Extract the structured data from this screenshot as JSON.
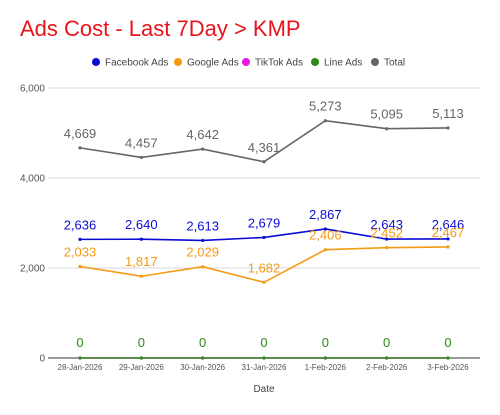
{
  "chart_data": {
    "type": "line",
    "title": "Ads Cost - Last 7Day > KMP",
    "xlabel": "Date",
    "ylabel": "",
    "categories": [
      "28-Jan-2026",
      "29-Jan-2026",
      "30-Jan-2026",
      "31-Jan-2026",
      "1-Feb-2026",
      "2-Feb-2026",
      "3-Feb-2026"
    ],
    "ylim": [
      0,
      6000
    ],
    "yticks": [
      0,
      2000,
      4000,
      6000
    ],
    "ytick_labels": [
      "0",
      "2,000",
      "4,000",
      "6,000"
    ],
    "grid": "horizontal",
    "legend_position": "top",
    "series": [
      {
        "name": "Facebook Ads",
        "color": "#0b0bd6",
        "values": [
          2636,
          2640,
          2613,
          2679,
          2867,
          2643,
          2646
        ],
        "labels": [
          "2,636",
          "2,640",
          "2,613",
          "2,679",
          "2,867",
          "2,643",
          "2,646"
        ]
      },
      {
        "name": "Google Ads",
        "color": "#f59a12",
        "values": [
          2033,
          1817,
          2029,
          1682,
          2406,
          2452,
          2467
        ],
        "labels": [
          "2,033",
          "1,817",
          "2,029",
          "1,682",
          "2,406",
          "2,452",
          "2,467"
        ]
      },
      {
        "name": "TikTok Ads",
        "color": "#e818e0",
        "values": [
          0,
          0,
          0,
          0,
          0,
          0,
          0
        ],
        "labels": [
          "",
          "",
          "",
          "",
          "",
          "",
          ""
        ]
      },
      {
        "name": "Line Ads",
        "color": "#2c8a17",
        "values": [
          0,
          0,
          0,
          0,
          0,
          0,
          0
        ],
        "labels": [
          "0",
          "0",
          "0",
          "0",
          "0",
          "0",
          "0"
        ]
      },
      {
        "name": "Total",
        "color": "#666666",
        "values": [
          4669,
          4457,
          4642,
          4361,
          5273,
          5095,
          5113
        ],
        "labels": [
          "4,669",
          "4,457",
          "4,642",
          "4,361",
          "5,273",
          "5,095",
          "5,113"
        ]
      }
    ]
  }
}
